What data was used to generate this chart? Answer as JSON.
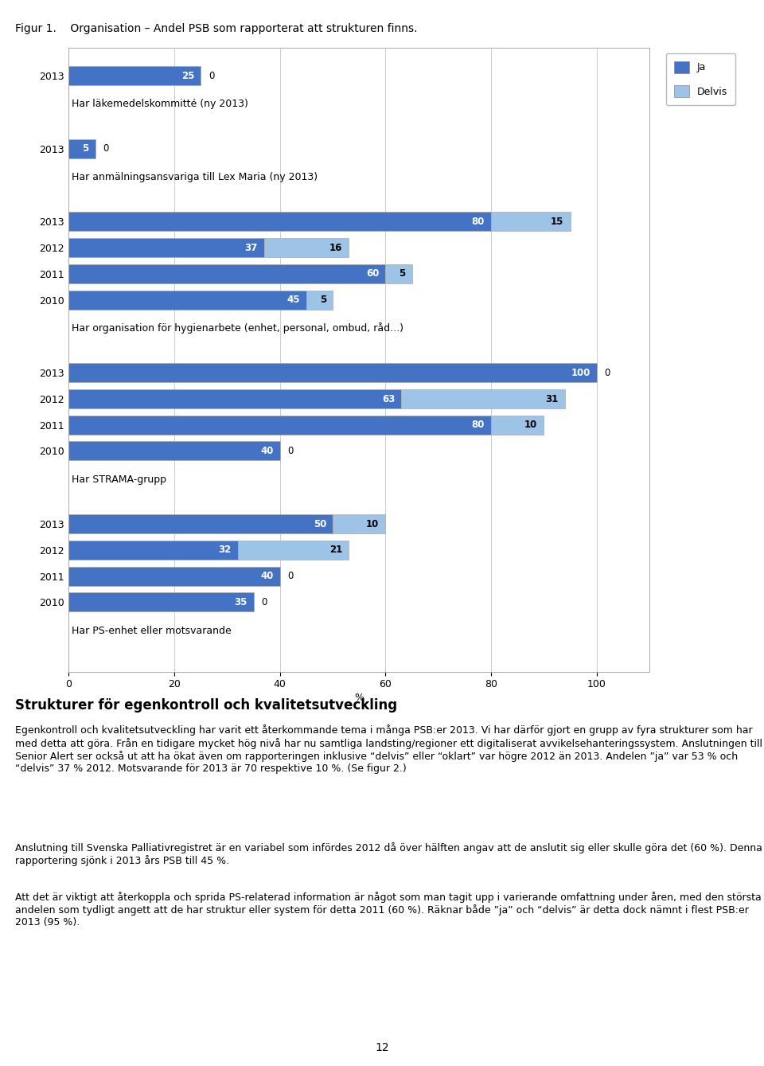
{
  "figure_title": "Figur 1.    Organisation – Andel PSB som rapporterat att strukturen finns.",
  "page_number": "12",
  "legend": {
    "ja": "Ja",
    "delvis": "Delvis"
  },
  "color_ja": "#4472C4",
  "color_delvis": "#9DC3E6",
  "sections": [
    {
      "label": "Har PS-enhet eller motsvarande",
      "rows": [
        {
          "year": "2010",
          "ja": 35,
          "delvis": 0
        },
        {
          "year": "2011",
          "ja": 40,
          "delvis": 0
        },
        {
          "year": "2012",
          "ja": 32,
          "delvis": 21
        },
        {
          "year": "2013",
          "ja": 50,
          "delvis": 10
        }
      ]
    },
    {
      "label": "Har STRAMA-grupp",
      "rows": [
        {
          "year": "2010",
          "ja": 40,
          "delvis": 0
        },
        {
          "year": "2011",
          "ja": 80,
          "delvis": 10
        },
        {
          "year": "2012",
          "ja": 63,
          "delvis": 31
        },
        {
          "year": "2013",
          "ja": 100,
          "delvis": 0
        }
      ]
    },
    {
      "label": "Har organisation för hygienarbete (enhet, personal, ombud, råd...)",
      "rows": [
        {
          "year": "2010",
          "ja": 45,
          "delvis": 5
        },
        {
          "year": "2011",
          "ja": 60,
          "delvis": 5
        },
        {
          "year": "2012",
          "ja": 37,
          "delvis": 16
        },
        {
          "year": "2013",
          "ja": 80,
          "delvis": 15
        }
      ]
    },
    {
      "label": "Har anmälningsansvariga till Lex Maria (ny 2013)",
      "rows": [
        {
          "year": "2013",
          "ja": 5,
          "delvis": 0
        }
      ]
    },
    {
      "label": "Har läkemedelskommitté (ny 2013)",
      "rows": [
        {
          "year": "2013",
          "ja": 25,
          "delvis": 0
        }
      ]
    }
  ],
  "xlim": [
    0,
    110
  ],
  "xticks": [
    0,
    20,
    40,
    60,
    80,
    100
  ],
  "xlabel": "%",
  "body_heading": "Strukturer för egenkontroll och kvalitetsutveckling",
  "body_paragraphs": [
    "Egenkontroll och kvalitetsutveckling har varit ett återkommande tema i många PSB:er 2013. Vi har därför gjort en grupp av fyra strukturer som har med detta att göra. Från en tidigare mycket hög nivå har nu samtliga landsting/regioner ett digitaliserat avvikelsehanteringssystem. Anslutningen till Senior Alert ser också ut att ha ökat även om rapporteringen inklusive “delvis” eller “oklart” var högre 2012 än 2013. Andelen ”ja” var 53 % och “delvis” 37 % 2012. Motsvarande för 2013 är 70 respektive 10 %. (Se figur 2.)",
    "Anslutning till Svenska Palliativregistret är en variabel som infördes 2012 då över hälften angav att de anslutit sig eller skulle göra det (60 %). Denna rapportering sjönk i 2013 års PSB till 45 %.",
    "Att det är viktigt att återkoppla och sprida PS-relaterad information är något som man tagit upp i varierande omfattning under åren, med den största andelen som tydligt angett att de har struktur eller system för detta 2011 (60 %). Räknar både ”ja” och “delvis” är detta dock nämnt i flest PSB:er 2013 (95 %)."
  ]
}
